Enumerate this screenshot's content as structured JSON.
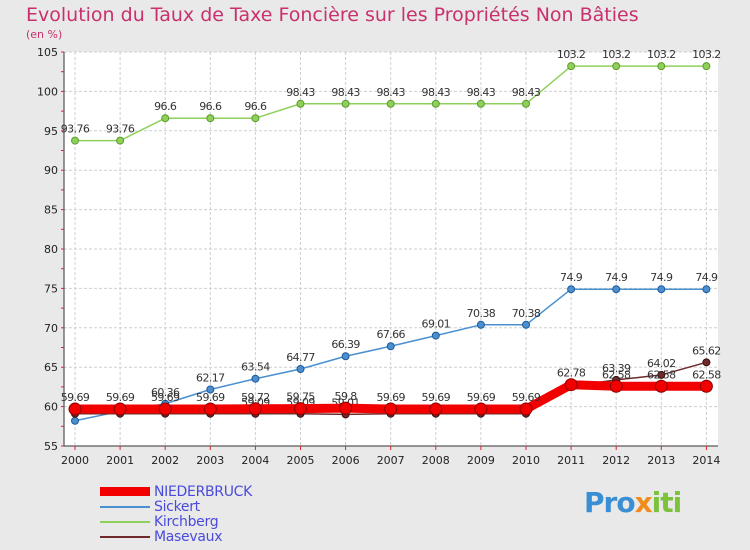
{
  "title": "Evolution du Taux de Taxe Foncière sur les Propriétés Non Bâties",
  "subtitle": "(en %)",
  "logo": {
    "part1": "Pro",
    "part2": "x",
    "part3": "iti"
  },
  "chart_data": {
    "type": "line",
    "title": "Evolution du Taux de Taxe Foncière sur les Propriétés Non Bâties",
    "ylabel": "(en %)",
    "xlabel": "",
    "ylim": [
      55,
      105
    ],
    "yticks": [
      55,
      60,
      65,
      70,
      75,
      80,
      85,
      90,
      95,
      100,
      105
    ],
    "ytick_labels": [
      "55",
      "60",
      "65",
      "70",
      "75",
      "80",
      "85",
      "90",
      "95",
      "100",
      "105"
    ],
    "categories": [
      "2000",
      "2001",
      "2002",
      "2003",
      "2004",
      "2005",
      "2006",
      "2007",
      "2008",
      "2009",
      "2010",
      "2011",
      "2012",
      "2013",
      "2014"
    ],
    "legend_position": "bottom-left",
    "series": [
      {
        "name": "Kirchberg",
        "color": "#8fd05a",
        "values": [
          93.76,
          93.76,
          96.6,
          96.6,
          96.6,
          98.43,
          98.43,
          98.43,
          98.43,
          98.43,
          98.43,
          103.2,
          103.2,
          103.2,
          103.2
        ],
        "labels": [
          "93.76",
          "93.76",
          "96.6",
          "96.6",
          "96.6",
          "98.43",
          "98.43",
          "98.43",
          "98.43",
          "98.43",
          "98.43",
          "103.2",
          "103.2",
          "103.2",
          "103.2"
        ]
      },
      {
        "name": "Sickert",
        "color": "#4a8fd0",
        "values": [
          58.2,
          59.4,
          60.36,
          62.17,
          63.54,
          64.77,
          66.39,
          67.66,
          69.01,
          70.38,
          70.38,
          74.9,
          74.9,
          74.9,
          74.9
        ],
        "labels": [
          "",
          "",
          "60.36",
          "62.17",
          "63.54",
          "64.77",
          "66.39",
          "67.66",
          "69.01",
          "70.38",
          "70.38",
          "74.9",
          "74.9",
          "74.9",
          "74.9"
        ]
      },
      {
        "name": "Masevaux",
        "color": "#6e2a2a",
        "values": [
          59.1,
          59.1,
          59.1,
          59.1,
          59.09,
          59.09,
          59.01,
          59.1,
          59.1,
          59.1,
          59.1,
          62.58,
          63.39,
          64.02,
          65.62
        ],
        "labels": [
          "",
          "",
          "",
          "",
          "59.09",
          "59.09",
          "59.01",
          "",
          "",
          "",
          "",
          "",
          "63.39",
          "64.02",
          "65.62"
        ]
      },
      {
        "name": "NIEDERBRUCK",
        "color": "#f20000",
        "values": [
          59.69,
          59.69,
          59.69,
          59.69,
          59.72,
          59.75,
          59.8,
          59.69,
          59.69,
          59.69,
          59.69,
          62.78,
          62.58,
          62.58,
          62.58
        ],
        "labels": [
          "59.69",
          "59.69",
          "59.69",
          "59.69",
          "59.72",
          "59.75",
          "59.8",
          "59.69",
          "59.69",
          "59.69",
          "59.69",
          "62.78",
          "62.58",
          "62.58",
          "62.58"
        ]
      }
    ],
    "legend_order": [
      "NIEDERBRUCK",
      "Sickert",
      "Kirchberg",
      "Masevaux"
    ]
  }
}
